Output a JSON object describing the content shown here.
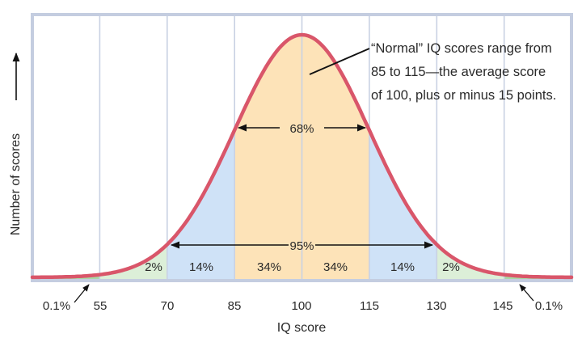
{
  "chart_data": {
    "type": "area",
    "title": "",
    "xlabel": "IQ score",
    "ylabel": "Number of scores",
    "x_ticks": [
      55,
      70,
      85,
      100,
      115,
      130,
      145
    ],
    "x_range": [
      40,
      160
    ],
    "distribution": {
      "kind": "normal",
      "mean": 100,
      "sd": 15
    },
    "bands": [
      {
        "from": 40,
        "to": 55,
        "percent": "0.1%",
        "color": "#a9d8a6"
      },
      {
        "from": 55,
        "to": 70,
        "percent": "2%",
        "color": "#dcefd8"
      },
      {
        "from": 70,
        "to": 85,
        "percent": "14%",
        "color": "#cfe2f7"
      },
      {
        "from": 85,
        "to": 100,
        "percent": "34%",
        "color": "#fde3b8"
      },
      {
        "from": 100,
        "to": 115,
        "percent": "34%",
        "color": "#fde3b8"
      },
      {
        "from": 115,
        "to": 130,
        "percent": "14%",
        "color": "#cfe2f7"
      },
      {
        "from": 130,
        "to": 145,
        "percent": "2%",
        "color": "#dcefd8"
      },
      {
        "from": 145,
        "to": 160,
        "percent": "0.1%",
        "color": "#a9d8a6"
      }
    ],
    "ranges": [
      {
        "from": 85,
        "to": 115,
        "label": "68%"
      },
      {
        "from": 70,
        "to": 130,
        "label": "95%"
      }
    ],
    "annotation": {
      "lines": [
        "“Normal” IQ scores range from",
        "85 to 115—the average score",
        "of 100, plus or minus 15 points."
      ]
    },
    "grid": true,
    "curve_color": "#d9566a",
    "frame_color": "#c4cde0"
  },
  "labels": {
    "x_axis": "IQ score",
    "y_axis": "Number of scores",
    "tail_left": "0.1%",
    "tail_right": "0.1%",
    "band_2_left": "2%",
    "band_14_left": "14%",
    "band_34_left": "34%",
    "band_34_right": "34%",
    "band_14_right": "14%",
    "band_2_right": "2%",
    "range_68": "68%",
    "range_95": "95%",
    "tick_55": "55",
    "tick_70": "70",
    "tick_85": "85",
    "tick_100": "100",
    "tick_115": "115",
    "tick_130": "130",
    "tick_145": "145",
    "note_line1": "“Normal” IQ scores range from",
    "note_line2": "85 to 115—the average score",
    "note_line3": "of 100, plus or minus 15 points."
  }
}
